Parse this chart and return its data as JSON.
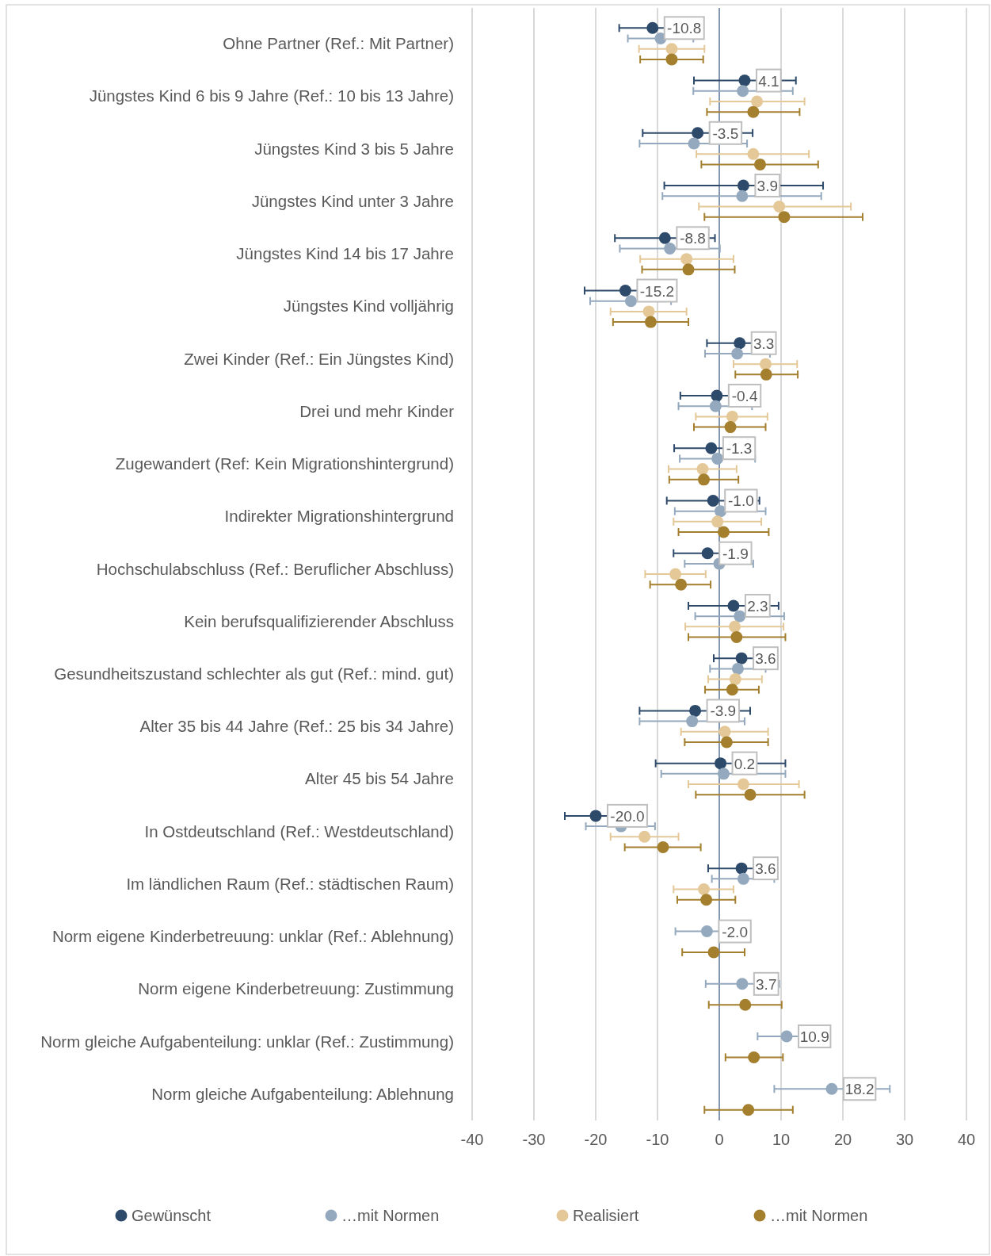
{
  "chart_data": {
    "type": "scatter",
    "orientation": "horizontal",
    "categories": [
      "Ohne Partner (Ref.: Mit Partner)",
      "Jüngstes Kind 6 bis 9 Jahre (Ref.: 10 bis 13 Jahre)",
      "Jüngstes Kind 3 bis 5 Jahre",
      "Jüngstes Kind unter 3 Jahre",
      "Jüngstes Kind 14 bis 17 Jahre",
      "Jüngstes Kind volljährig",
      "Zwei Kinder (Ref.: Ein Jüngstes Kind)",
      "Drei und mehr Kinder",
      "Zugewandert (Ref: Kein Migrationshintergrund)",
      "Indirekter Migrationshintergrund",
      "Hochschulabschluss (Ref.: Beruflicher Abschluss)",
      "Kein berufsqualifizierender Abschluss",
      "Gesundheitszustand schlechter als gut (Ref.: mind. gut)",
      "Alter 35 bis 44 Jahre (Ref.: 25 bis 34 Jahre)",
      "Alter 45 bis 54 Jahre",
      "In Ostdeutschland (Ref.: Westdeutschland)",
      "Im ländlichen Raum (Ref.: städtischen Raum)",
      "Norm eigene Kinderbetreuung: unklar (Ref.: Ablehnung)",
      "Norm eigene Kinderbetreuung: Zustimmung",
      "Norm gleiche Aufgabenteilung: unklar (Ref.: Zustimmung)",
      "Norm gleiche Aufgabenteilung: Ablehnung"
    ],
    "series": [
      {
        "name": "Gewünscht",
        "color": "#2e4a6b",
        "values": [
          -10.8,
          4.1,
          -3.5,
          3.9,
          -8.8,
          -15.2,
          3.3,
          -0.4,
          -1.3,
          -1.0,
          -1.9,
          2.3,
          3.6,
          -3.9,
          0.2,
          -20.0,
          3.6,
          null,
          null,
          null,
          null
        ],
        "errors": [
          [
            -16.2,
            -5.4
          ],
          [
            -4.1,
            12.4
          ],
          [
            -12.4,
            5.4
          ],
          [
            -8.9,
            16.8
          ],
          [
            -16.9,
            -0.7
          ],
          [
            -21.8,
            -8.6
          ],
          [
            -2.0,
            8.6
          ],
          [
            -6.3,
            5.5
          ],
          [
            -7.3,
            4.7
          ],
          [
            -8.5,
            6.5
          ],
          [
            -7.4,
            3.6
          ],
          [
            -5.0,
            9.6
          ],
          [
            -0.9,
            8.1
          ],
          [
            -12.9,
            5.0
          ],
          [
            -10.3,
            10.7
          ],
          [
            -25.0,
            -15.0
          ],
          [
            -1.8,
            9.0
          ],
          null,
          null,
          null,
          null
        ],
        "value_labels": [
          "-10.8",
          "4.1",
          "-3.5",
          "3.9",
          "-8.8",
          "-15.2",
          "3.3",
          "-0.4",
          "-1.3",
          "-1.0",
          "-1.9",
          "2.3",
          "3.6",
          "-3.9",
          "0.2",
          "-20.0",
          "3.6",
          null,
          null,
          null,
          null
        ]
      },
      {
        "name": "…mit Normen",
        "color": "#94a9be",
        "values": [
          -9.5,
          3.8,
          -4.1,
          3.7,
          -8.0,
          -14.3,
          2.9,
          -0.6,
          -0.3,
          0.2,
          0.0,
          3.3,
          3.0,
          -4.4,
          0.7,
          -15.9,
          3.9,
          -2.0,
          3.7,
          10.9,
          18.2
        ],
        "errors": [
          [
            -14.8,
            -4.2
          ],
          [
            -4.2,
            11.9
          ],
          [
            -12.9,
            4.5
          ],
          [
            -9.2,
            16.5
          ],
          [
            -16.1,
            0.1
          ],
          [
            -20.9,
            -7.8
          ],
          [
            -2.3,
            8.2
          ],
          [
            -6.6,
            5.3
          ],
          [
            -6.4,
            5.8
          ],
          [
            -7.2,
            7.5
          ],
          [
            -5.6,
            5.5
          ],
          [
            -3.9,
            10.5
          ],
          [
            -1.5,
            7.5
          ],
          [
            -12.9,
            4.1
          ],
          [
            -9.4,
            10.7
          ],
          [
            -21.6,
            -10.4
          ],
          [
            -1.2,
            8.9
          ],
          [
            -7.1,
            3.1
          ],
          [
            -2.2,
            9.7
          ],
          [
            6.2,
            15.6
          ],
          [
            8.9,
            27.6
          ]
        ],
        "value_labels": [
          null,
          null,
          null,
          null,
          null,
          null,
          null,
          null,
          null,
          null,
          null,
          null,
          null,
          null,
          null,
          null,
          null,
          "-2.0",
          "3.7",
          "10.9",
          "18.2"
        ]
      },
      {
        "name": "Realisiert",
        "color": "#e4c898",
        "values": [
          -7.7,
          6.1,
          5.5,
          9.7,
          -5.3,
          -11.4,
          7.5,
          2.1,
          -2.7,
          -0.3,
          -7.1,
          2.5,
          2.6,
          0.9,
          3.9,
          -12.1,
          -2.5,
          null,
          null,
          null,
          null
        ],
        "errors": [
          [
            -13.0,
            -2.4
          ],
          [
            -1.5,
            13.8
          ],
          [
            -3.7,
            14.5
          ],
          [
            -3.3,
            21.3
          ],
          [
            -12.8,
            2.3
          ],
          [
            -17.6,
            -5.3
          ],
          [
            2.3,
            12.6
          ],
          [
            -3.8,
            7.8
          ],
          [
            -8.2,
            2.8
          ],
          [
            -7.4,
            6.8
          ],
          [
            -12.0,
            -2.2
          ],
          [
            -5.5,
            10.4
          ],
          [
            -1.8,
            6.9
          ],
          [
            -6.2,
            7.9
          ],
          [
            -5.0,
            12.9
          ],
          [
            -17.6,
            -6.6
          ],
          [
            -7.4,
            2.3
          ],
          null,
          null,
          null,
          null
        ]
      },
      {
        "name": "…mit Normen",
        "color": "#a47f2e",
        "values": [
          -7.7,
          5.5,
          6.6,
          10.5,
          -5.0,
          -11.1,
          7.6,
          1.8,
          -2.5,
          0.7,
          -6.2,
          2.8,
          2.1,
          1.2,
          5.0,
          -9.1,
          -2.1,
          -0.9,
          4.2,
          5.6,
          4.7
        ],
        "errors": [
          [
            -12.8,
            -2.6
          ],
          [
            -2.0,
            13.0
          ],
          [
            -2.9,
            16.0
          ],
          [
            -2.4,
            23.2
          ],
          [
            -12.5,
            2.5
          ],
          [
            -17.2,
            -5.0
          ],
          [
            2.6,
            12.7
          ],
          [
            -4.1,
            7.5
          ],
          [
            -8.1,
            3.1
          ],
          [
            -6.6,
            8.0
          ],
          [
            -11.2,
            -1.4
          ],
          [
            -5.0,
            10.7
          ],
          [
            -2.3,
            6.4
          ],
          [
            -5.6,
            7.9
          ],
          [
            -3.8,
            13.8
          ],
          [
            -15.3,
            -3.0
          ],
          [
            -6.8,
            2.6
          ],
          [
            -6.0,
            4.1
          ],
          [
            -1.7,
            10.1
          ],
          [
            1.0,
            10.3
          ],
          [
            -2.4,
            11.9
          ]
        ]
      }
    ],
    "xlim": [
      -40,
      40
    ],
    "xticks": [
      -40,
      -30,
      -20,
      -10,
      0,
      10,
      20,
      30,
      40
    ],
    "ref_lines": [
      {
        "axis": "x",
        "value": 0,
        "color": "#8497b0"
      }
    ],
    "grid": "x",
    "legend": "bottom",
    "marker": "circle"
  }
}
